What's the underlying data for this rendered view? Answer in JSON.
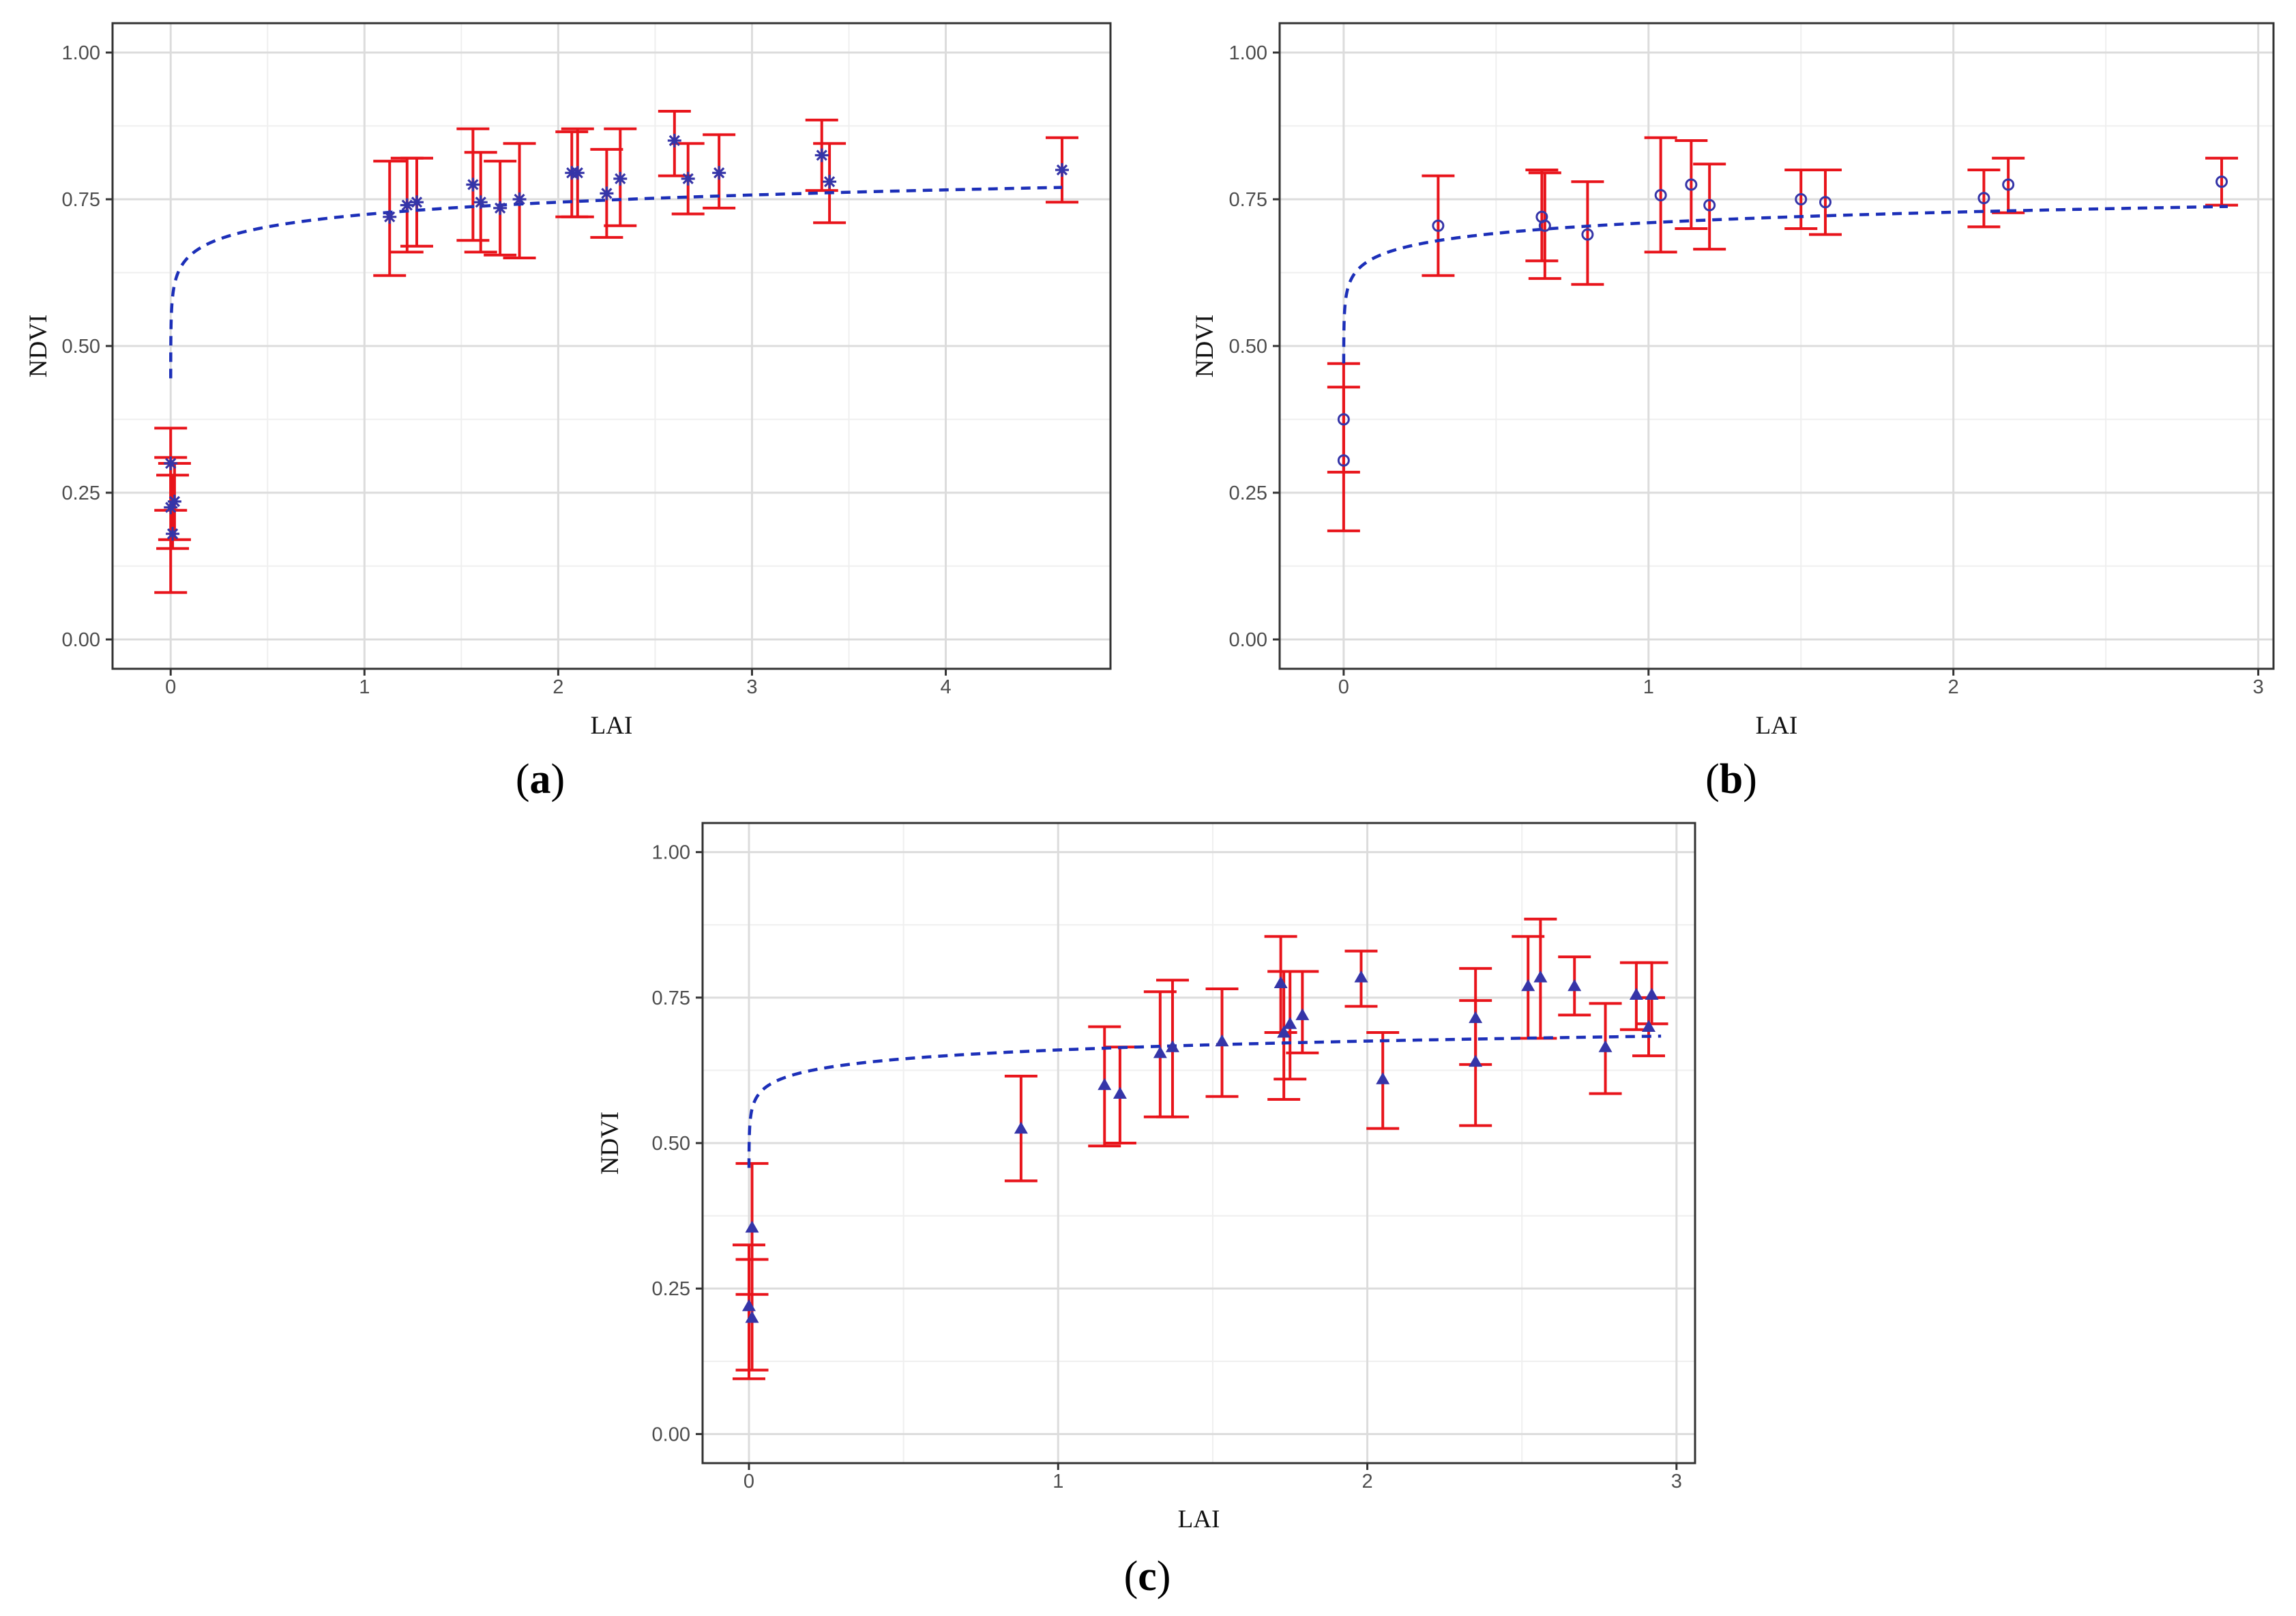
{
  "figure": {
    "description_labels": [
      "a",
      "b",
      "c"
    ]
  },
  "colors": {
    "errorbar": "#e8141b",
    "point": "#3535a8",
    "fit": "#1c2fb8",
    "grid_major": "#dcdcdc",
    "grid_minor": "#efefef",
    "border": "#333333"
  },
  "chart_data": [
    {
      "panel": "a",
      "type": "scatter",
      "marker": "asterisk",
      "xlabel": "LAI",
      "ylabel": "NDVI",
      "xlim": [
        -0.3,
        4.85
      ],
      "ylim": [
        -0.05,
        1.05
      ],
      "xticks": [
        0,
        1,
        2,
        3,
        4
      ],
      "xtick_labels": [
        "0",
        "1",
        "2",
        "3",
        "4"
      ],
      "yticks": [
        0,
        0.25,
        0.5,
        0.75,
        1.0
      ],
      "ytick_labels": [
        "0.00",
        "0.25",
        "0.50",
        "0.75",
        "1.00"
      ],
      "panel_label": "a",
      "fit_curve": {
        "type": "logarithmic",
        "a": 0.724,
        "b": 0.0303,
        "xmin": 0.0001,
        "xmax": 4.6
      },
      "points": [
        {
          "x": 0.0,
          "y": 0.225,
          "lo": 0.08,
          "hi": 0.31
        },
        {
          "x": 0.0,
          "y": 0.3,
          "lo": 0.22,
          "hi": 0.36
        },
        {
          "x": 0.01,
          "y": 0.18,
          "lo": 0.155,
          "hi": 0.28
        },
        {
          "x": 0.02,
          "y": 0.235,
          "lo": 0.17,
          "hi": 0.3
        },
        {
          "x": 1.13,
          "y": 0.72,
          "lo": 0.62,
          "hi": 0.815
        },
        {
          "x": 1.22,
          "y": 0.74,
          "lo": 0.66,
          "hi": 0.82
        },
        {
          "x": 1.27,
          "y": 0.745,
          "lo": 0.67,
          "hi": 0.82
        },
        {
          "x": 1.56,
          "y": 0.775,
          "lo": 0.68,
          "hi": 0.87
        },
        {
          "x": 1.6,
          "y": 0.745,
          "lo": 0.66,
          "hi": 0.83
        },
        {
          "x": 1.7,
          "y": 0.735,
          "lo": 0.655,
          "hi": 0.815
        },
        {
          "x": 1.8,
          "y": 0.75,
          "lo": 0.65,
          "hi": 0.845
        },
        {
          "x": 2.07,
          "y": 0.795,
          "lo": 0.72,
          "hi": 0.865
        },
        {
          "x": 2.1,
          "y": 0.795,
          "lo": 0.72,
          "hi": 0.87
        },
        {
          "x": 2.25,
          "y": 0.76,
          "lo": 0.685,
          "hi": 0.835
        },
        {
          "x": 2.32,
          "y": 0.785,
          "lo": 0.705,
          "hi": 0.87
        },
        {
          "x": 2.6,
          "y": 0.85,
          "lo": 0.79,
          "hi": 0.9
        },
        {
          "x": 2.67,
          "y": 0.785,
          "lo": 0.725,
          "hi": 0.845
        },
        {
          "x": 2.83,
          "y": 0.795,
          "lo": 0.735,
          "hi": 0.86
        },
        {
          "x": 3.36,
          "y": 0.825,
          "lo": 0.765,
          "hi": 0.885
        },
        {
          "x": 3.4,
          "y": 0.78,
          "lo": 0.71,
          "hi": 0.845
        },
        {
          "x": 4.6,
          "y": 0.8,
          "lo": 0.745,
          "hi": 0.855
        }
      ]
    },
    {
      "panel": "b",
      "type": "scatter",
      "marker": "circle",
      "xlabel": "LAI",
      "ylabel": "NDVI",
      "xlim": [
        -0.21,
        3.05
      ],
      "ylim": [
        -0.05,
        1.05
      ],
      "xticks": [
        0,
        1,
        2,
        3
      ],
      "xtick_labels": [
        "0",
        "1",
        "2",
        "3"
      ],
      "yticks": [
        0,
        0.25,
        0.5,
        0.75,
        1.0
      ],
      "ytick_labels": [
        "0.00",
        "0.25",
        "0.50",
        "0.75",
        "1.00"
      ],
      "panel_label": "b",
      "fit_curve": {
        "type": "logarithmic",
        "a": 0.71,
        "b": 0.026,
        "xmin": 0.0001,
        "xmax": 2.9
      },
      "points": [
        {
          "x": 0.0,
          "y": 0.305,
          "lo": 0.185,
          "hi": 0.43
        },
        {
          "x": 0.0,
          "y": 0.375,
          "lo": 0.285,
          "hi": 0.47
        },
        {
          "x": 0.31,
          "y": 0.705,
          "lo": 0.62,
          "hi": 0.79
        },
        {
          "x": 0.65,
          "y": 0.72,
          "lo": 0.645,
          "hi": 0.8
        },
        {
          "x": 0.66,
          "y": 0.705,
          "lo": 0.615,
          "hi": 0.795
        },
        {
          "x": 0.8,
          "y": 0.69,
          "lo": 0.605,
          "hi": 0.78
        },
        {
          "x": 1.04,
          "y": 0.757,
          "lo": 0.66,
          "hi": 0.855
        },
        {
          "x": 1.14,
          "y": 0.775,
          "lo": 0.7,
          "hi": 0.85
        },
        {
          "x": 1.2,
          "y": 0.74,
          "lo": 0.665,
          "hi": 0.81
        },
        {
          "x": 1.5,
          "y": 0.75,
          "lo": 0.7,
          "hi": 0.8
        },
        {
          "x": 1.58,
          "y": 0.745,
          "lo": 0.69,
          "hi": 0.8
        },
        {
          "x": 2.1,
          "y": 0.752,
          "lo": 0.703,
          "hi": 0.8
        },
        {
          "x": 2.18,
          "y": 0.775,
          "lo": 0.727,
          "hi": 0.82
        },
        {
          "x": 2.88,
          "y": 0.78,
          "lo": 0.74,
          "hi": 0.82
        }
      ]
    },
    {
      "panel": "c",
      "type": "scatter",
      "marker": "triangle",
      "xlabel": "LAI",
      "ylabel": "NDVI",
      "xlim": [
        -0.15,
        3.06
      ],
      "ylim": [
        -0.05,
        1.05
      ],
      "xticks": [
        0,
        1,
        2,
        3
      ],
      "xtick_labels": [
        "0",
        "1",
        "2",
        "3"
      ],
      "yticks": [
        0,
        0.25,
        0.5,
        0.75,
        1.0
      ],
      "ytick_labels": [
        "0.00",
        "0.25",
        "0.50",
        "0.75",
        "1.00"
      ],
      "panel_label": "c",
      "fit_curve": {
        "type": "logarithmic",
        "a": 0.66,
        "b": 0.022,
        "xmin": 0.0001,
        "xmax": 2.95
      },
      "points": [
        {
          "x": 0.0,
          "y": 0.22,
          "lo": 0.095,
          "hi": 0.325
        },
        {
          "x": 0.01,
          "y": 0.2,
          "lo": 0.11,
          "hi": 0.3
        },
        {
          "x": 0.01,
          "y": 0.355,
          "lo": 0.24,
          "hi": 0.465
        },
        {
          "x": 0.88,
          "y": 0.525,
          "lo": 0.435,
          "hi": 0.615
        },
        {
          "x": 1.15,
          "y": 0.6,
          "lo": 0.495,
          "hi": 0.7
        },
        {
          "x": 1.2,
          "y": 0.585,
          "lo": 0.5,
          "hi": 0.665
        },
        {
          "x": 1.33,
          "y": 0.655,
          "lo": 0.545,
          "hi": 0.76
        },
        {
          "x": 1.37,
          "y": 0.665,
          "lo": 0.545,
          "hi": 0.78
        },
        {
          "x": 1.53,
          "y": 0.675,
          "lo": 0.58,
          "hi": 0.765
        },
        {
          "x": 1.72,
          "y": 0.775,
          "lo": 0.69,
          "hi": 0.855
        },
        {
          "x": 1.73,
          "y": 0.69,
          "lo": 0.575,
          "hi": 0.795
        },
        {
          "x": 1.75,
          "y": 0.705,
          "lo": 0.61,
          "hi": 0.795
        },
        {
          "x": 1.79,
          "y": 0.72,
          "lo": 0.655,
          "hi": 0.795
        },
        {
          "x": 1.98,
          "y": 0.785,
          "lo": 0.735,
          "hi": 0.83
        },
        {
          "x": 2.05,
          "y": 0.61,
          "lo": 0.525,
          "hi": 0.69
        },
        {
          "x": 2.35,
          "y": 0.715,
          "lo": 0.635,
          "hi": 0.8
        },
        {
          "x": 2.35,
          "y": 0.64,
          "lo": 0.53,
          "hi": 0.745
        },
        {
          "x": 2.52,
          "y": 0.77,
          "lo": 0.68,
          "hi": 0.855
        },
        {
          "x": 2.56,
          "y": 0.785,
          "lo": 0.68,
          "hi": 0.885
        },
        {
          "x": 2.67,
          "y": 0.77,
          "lo": 0.72,
          "hi": 0.82
        },
        {
          "x": 2.77,
          "y": 0.665,
          "lo": 0.585,
          "hi": 0.74
        },
        {
          "x": 2.87,
          "y": 0.755,
          "lo": 0.695,
          "hi": 0.81
        },
        {
          "x": 2.91,
          "y": 0.7,
          "lo": 0.65,
          "hi": 0.75
        },
        {
          "x": 2.92,
          "y": 0.755,
          "lo": 0.705,
          "hi": 0.81
        }
      ]
    }
  ]
}
